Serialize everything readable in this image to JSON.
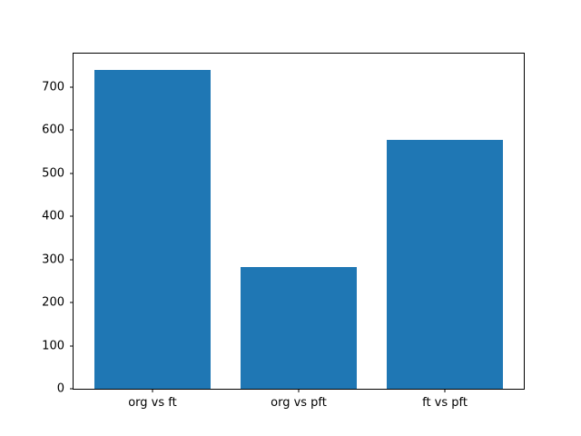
{
  "chart_data": {
    "type": "bar",
    "categories": [
      "org vs ft",
      "org vs pft",
      "ft vs pft"
    ],
    "values": [
      740,
      283,
      578
    ],
    "title": "",
    "xlabel": "",
    "ylabel": "",
    "ylim": [
      0,
      777
    ],
    "yticks": [
      0,
      100,
      200,
      300,
      400,
      500,
      600,
      700
    ],
    "bar_color": "#1f77b4",
    "axes_edge_color": "#000000",
    "background_color": "#ffffff",
    "grid": false,
    "legend": "none"
  }
}
